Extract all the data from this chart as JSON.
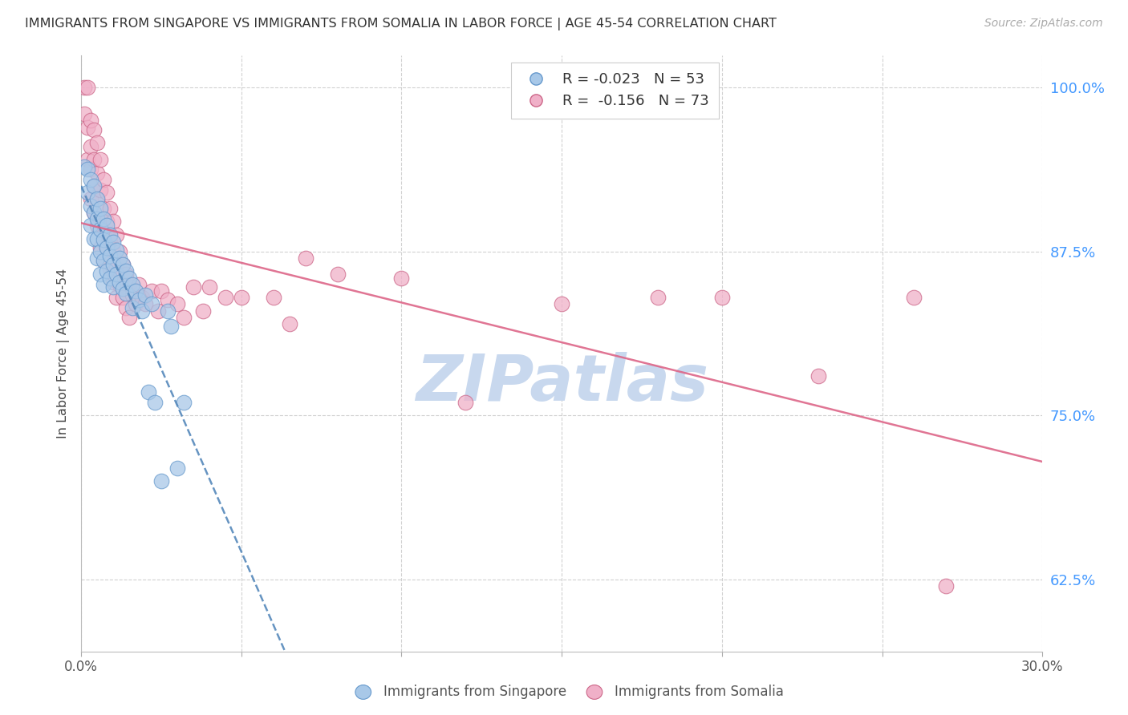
{
  "title": "IMMIGRANTS FROM SINGAPORE VS IMMIGRANTS FROM SOMALIA IN LABOR FORCE | AGE 45-54 CORRELATION CHART",
  "source": "Source: ZipAtlas.com",
  "ylabel": "In Labor Force | Age 45-54",
  "xlim": [
    0.0,
    0.3
  ],
  "ylim": [
    0.57,
    1.025
  ],
  "yticks": [
    0.625,
    0.75,
    0.875,
    1.0
  ],
  "ytick_labels": [
    "62.5%",
    "75.0%",
    "87.5%",
    "100.0%"
  ],
  "xticks": [
    0.0,
    0.05,
    0.1,
    0.15,
    0.2,
    0.25,
    0.3
  ],
  "singapore_R": -0.023,
  "singapore_N": 53,
  "somalia_R": -0.156,
  "somalia_N": 73,
  "singapore_color": "#a8c8e8",
  "somalia_color": "#f0b0c8",
  "singapore_edge_color": "#6699cc",
  "somalia_edge_color": "#cc6688",
  "singapore_line_color": "#5588bb",
  "somalia_line_color": "#dd6688",
  "background_color": "#ffffff",
  "grid_color": "#cccccc",
  "watermark": "ZIPatlas",
  "watermark_color": "#c8d8ee",
  "singapore_x": [
    0.001,
    0.002,
    0.002,
    0.003,
    0.003,
    0.003,
    0.004,
    0.004,
    0.004,
    0.005,
    0.005,
    0.005,
    0.005,
    0.006,
    0.006,
    0.006,
    0.006,
    0.007,
    0.007,
    0.007,
    0.007,
    0.008,
    0.008,
    0.008,
    0.009,
    0.009,
    0.009,
    0.01,
    0.01,
    0.01,
    0.011,
    0.011,
    0.012,
    0.012,
    0.013,
    0.013,
    0.014,
    0.014,
    0.015,
    0.016,
    0.016,
    0.017,
    0.018,
    0.019,
    0.02,
    0.021,
    0.022,
    0.023,
    0.025,
    0.027,
    0.028,
    0.03,
    0.032
  ],
  "singapore_y": [
    0.94,
    0.938,
    0.92,
    0.93,
    0.91,
    0.895,
    0.925,
    0.905,
    0.885,
    0.915,
    0.9,
    0.885,
    0.87,
    0.908,
    0.892,
    0.875,
    0.858,
    0.9,
    0.884,
    0.868,
    0.85,
    0.895,
    0.878,
    0.86,
    0.888,
    0.872,
    0.855,
    0.882,
    0.865,
    0.848,
    0.876,
    0.858,
    0.87,
    0.852,
    0.865,
    0.847,
    0.86,
    0.843,
    0.855,
    0.85,
    0.832,
    0.845,
    0.838,
    0.83,
    0.842,
    0.768,
    0.835,
    0.76,
    0.7,
    0.83,
    0.818,
    0.71,
    0.76
  ],
  "somalia_x": [
    0.001,
    0.001,
    0.002,
    0.002,
    0.002,
    0.003,
    0.003,
    0.003,
    0.003,
    0.004,
    0.004,
    0.004,
    0.004,
    0.005,
    0.005,
    0.005,
    0.005,
    0.006,
    0.006,
    0.006,
    0.006,
    0.007,
    0.007,
    0.007,
    0.007,
    0.008,
    0.008,
    0.008,
    0.009,
    0.009,
    0.009,
    0.01,
    0.01,
    0.01,
    0.011,
    0.011,
    0.011,
    0.012,
    0.012,
    0.013,
    0.013,
    0.014,
    0.014,
    0.015,
    0.015,
    0.016,
    0.017,
    0.018,
    0.019,
    0.02,
    0.022,
    0.024,
    0.025,
    0.027,
    0.03,
    0.032,
    0.035,
    0.038,
    0.04,
    0.045,
    0.05,
    0.06,
    0.065,
    0.07,
    0.08,
    0.1,
    0.12,
    0.15,
    0.18,
    0.2,
    0.23,
    0.26,
    0.27
  ],
  "somalia_y": [
    1.0,
    0.98,
    1.0,
    0.97,
    0.945,
    0.975,
    0.955,
    0.938,
    0.915,
    0.968,
    0.945,
    0.925,
    0.905,
    0.958,
    0.935,
    0.915,
    0.895,
    0.945,
    0.922,
    0.9,
    0.878,
    0.93,
    0.908,
    0.888,
    0.868,
    0.92,
    0.898,
    0.878,
    0.908,
    0.885,
    0.862,
    0.898,
    0.875,
    0.852,
    0.888,
    0.862,
    0.84,
    0.875,
    0.85,
    0.865,
    0.84,
    0.858,
    0.832,
    0.85,
    0.825,
    0.842,
    0.835,
    0.85,
    0.84,
    0.835,
    0.845,
    0.83,
    0.845,
    0.838,
    0.835,
    0.825,
    0.848,
    0.83,
    0.848,
    0.84,
    0.84,
    0.84,
    0.82,
    0.87,
    0.858,
    0.855,
    0.76,
    0.835,
    0.84,
    0.84,
    0.78,
    0.84,
    0.62
  ]
}
